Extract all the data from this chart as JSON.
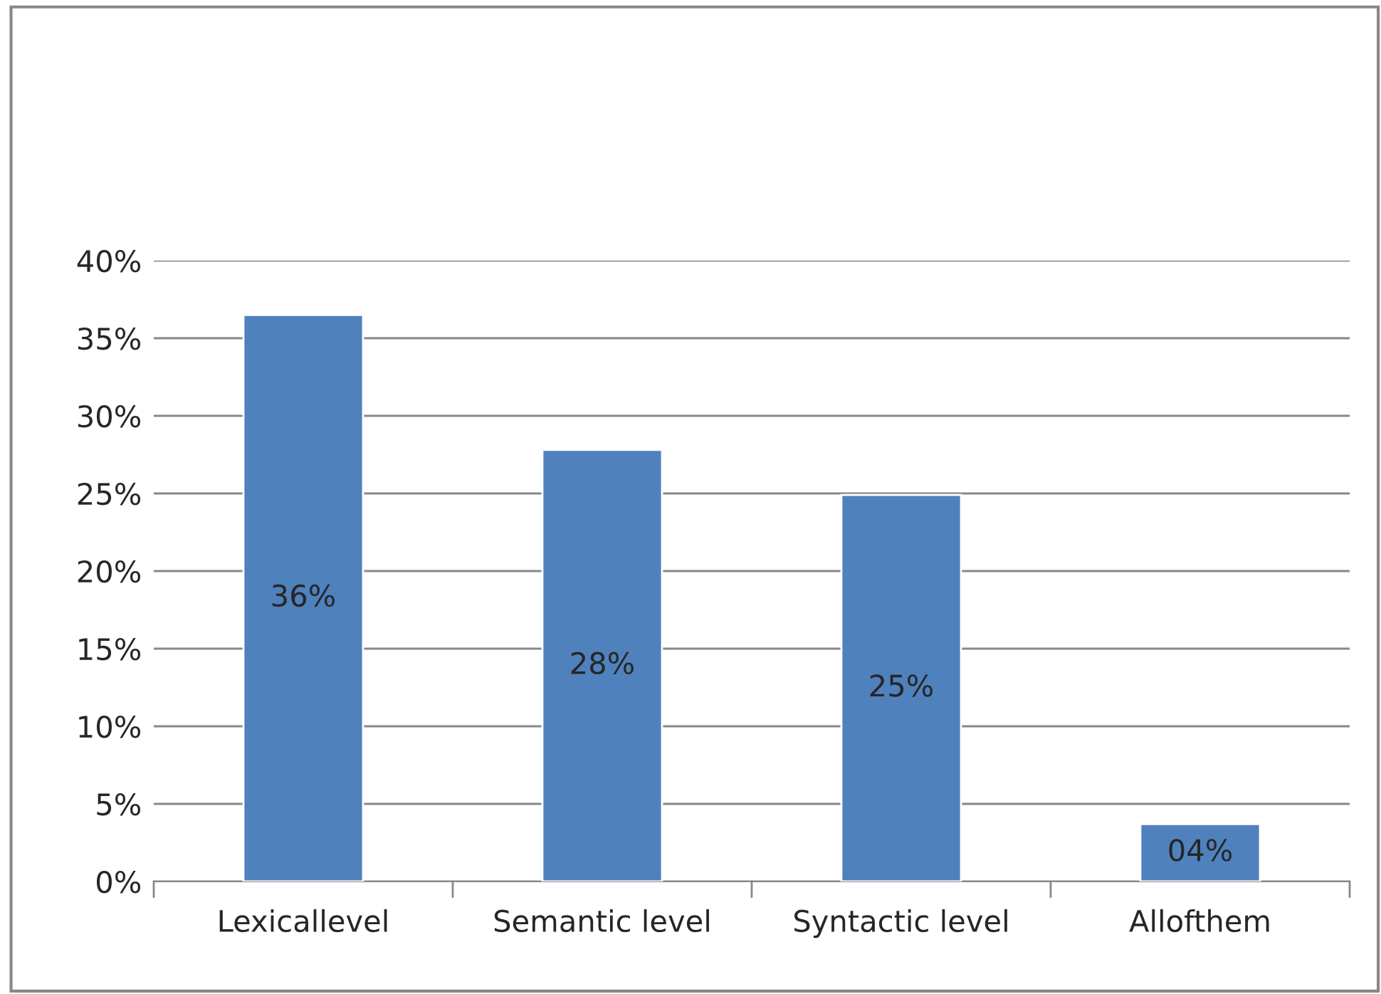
{
  "chart_data": {
    "type": "bar",
    "categories": [
      "Lexicallevel",
      "Semantic level",
      "Syntactic level",
      "Allofthem"
    ],
    "values": [
      36.5,
      27.8,
      24.9,
      3.7
    ],
    "value_labels": [
      "36%",
      "28%",
      "25%",
      "04%"
    ],
    "color": "#4f81bd",
    "ylim": [
      0,
      40
    ],
    "yticks": [
      {
        "value": 0,
        "label": "0%"
      },
      {
        "value": 5,
        "label": "5%"
      },
      {
        "value": 10,
        "label": "10%"
      },
      {
        "value": 15,
        "label": "15%"
      },
      {
        "value": 20,
        "label": "20%"
      },
      {
        "value": 25,
        "label": "25%"
      },
      {
        "value": 30,
        "label": "30%"
      },
      {
        "value": 35,
        "label": "35%"
      },
      {
        "value": 40,
        "label": "40%"
      }
    ],
    "grid": "y",
    "legend": false
  }
}
